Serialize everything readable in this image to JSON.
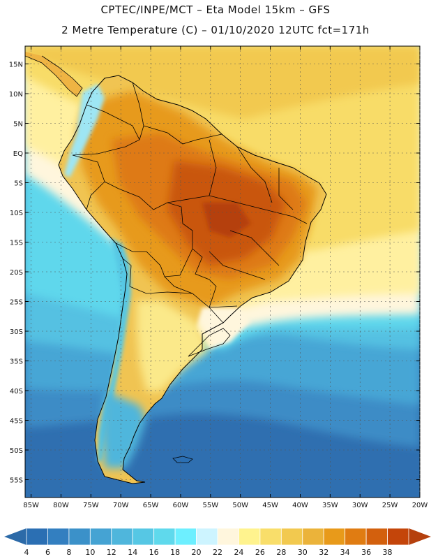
{
  "title": {
    "line1": "CPTEC/INPE/MCT –  Eta Model 15km – GFS",
    "line2": "2 Metre Temperature (C) – 01/10/2020 12UTC fct=171h"
  },
  "map": {
    "lat_labels": [
      "15N",
      "10N",
      "5N",
      "EQ",
      "5S",
      "10S",
      "15S",
      "20S",
      "25S",
      "30S",
      "35S",
      "40S",
      "45S",
      "50S",
      "55S"
    ],
    "lat_values": [
      15,
      10,
      5,
      0,
      -5,
      -10,
      -15,
      -20,
      -25,
      -30,
      -35,
      -40,
      -45,
      -50,
      -55
    ],
    "lon_labels": [
      "85W",
      "80W",
      "75W",
      "70W",
      "65W",
      "60W",
      "55W",
      "50W",
      "45W",
      "40W",
      "35W",
      "30W",
      "25W",
      "20W"
    ],
    "lon_values": [
      -85,
      -80,
      -75,
      -70,
      -65,
      -60,
      -55,
      -50,
      -45,
      -40,
      -35,
      -30,
      -25,
      -20
    ],
    "lat_range": [
      -58,
      18
    ],
    "lon_range": [
      -86,
      -20
    ]
  },
  "colorbar": {
    "labels": [
      "4",
      "6",
      "8",
      "10",
      "12",
      "14",
      "16",
      "18",
      "20",
      "22",
      "24",
      "26",
      "28",
      "30",
      "32",
      "34",
      "36",
      "38"
    ],
    "colors": [
      "#2b6fb3",
      "#337fc0",
      "#3b91c9",
      "#45a3d3",
      "#4fb6dc",
      "#56c7e4",
      "#5fd9ec",
      "#6defff",
      "#cdf4ff",
      "#fff6dd",
      "#fff38e",
      "#f9de6a",
      "#f2c94f",
      "#ebb33a",
      "#e89a1a",
      "#e07c12",
      "#d3600d",
      "#c4450a"
    ],
    "low_color": "#2c6aa8",
    "high_color": "#b5400d"
  }
}
